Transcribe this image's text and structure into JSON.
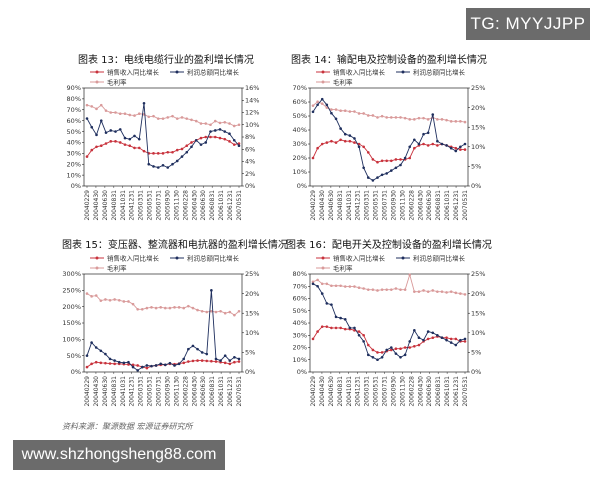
{
  "watermark_top": "TG: MYYJJPP",
  "watermark_bottom": "www.shzhongsheng88.com",
  "source_note": "资料来源：聚源数据 宏源证券研究所",
  "series_colors": {
    "sales_growth": "#c8323c",
    "profit_growth": "#1f2f5e",
    "gross_margin": "#d99a9a"
  },
  "chart_data": [
    {
      "type": "line",
      "title": "图表 13：电线电缆行业的盈利增长情况",
      "legend": [
        "销售收入同比增长",
        "利润总额同比增长",
        "毛利率"
      ],
      "x_tick_labels": [
        "20040229",
        "20040430",
        "20040630",
        "20040831",
        "20041031",
        "20041231",
        "20050331",
        "20050531",
        "20050731",
        "20050930",
        "20051130",
        "20060228",
        "20060430",
        "20060630",
        "20060831",
        "20061031",
        "20061231",
        "20070531"
      ],
      "left_axis": {
        "min": 0,
        "max": 90,
        "step": 10,
        "format": "percent"
      },
      "right_axis": {
        "min": 0,
        "max": 16,
        "step": 2,
        "format": "percent"
      },
      "series": [
        {
          "name": "销售收入同比增长",
          "axis": "left",
          "values": [
            27,
            33,
            36,
            37,
            39,
            41,
            41,
            40,
            38,
            37,
            35,
            35,
            32,
            30,
            30,
            30,
            30,
            31,
            31,
            33,
            34,
            37,
            40,
            42,
            44,
            45,
            45,
            45,
            44,
            43,
            41,
            38,
            39
          ]
        },
        {
          "name": "利润总额同比增长",
          "axis": "left",
          "values": [
            62,
            54,
            47,
            60,
            49,
            51,
            50,
            52,
            44,
            43,
            46,
            43,
            76,
            20,
            18,
            17,
            19,
            17,
            20,
            23,
            27,
            31,
            36,
            42,
            38,
            40,
            50,
            51,
            52,
            50,
            48,
            42,
            37
          ]
        },
        {
          "name": "毛利率",
          "axis": "right",
          "values": [
            13.2,
            13.0,
            12.6,
            13.2,
            12.3,
            12.0,
            12.0,
            11.8,
            11.8,
            11.6,
            11.5,
            11.8,
            11.7,
            11.3,
            11.4,
            11.0,
            11.0,
            11.2,
            11.4,
            11.0,
            11.2,
            11.0,
            10.8,
            10.6,
            10.2,
            10.2,
            10.0,
            10.6,
            10.3,
            10.4,
            10.2,
            9.8,
            10.0
          ]
        }
      ]
    },
    {
      "type": "line",
      "title": "图表 14：输配电及控制设备的盈利增长情况",
      "legend": [
        "销售收入同比增长",
        "利润总额同比增长",
        "毛利率"
      ],
      "x_tick_labels": [
        "20040229",
        "20040430",
        "20040630",
        "20040831",
        "20041031",
        "20041231",
        "20050331",
        "20050531",
        "20050731",
        "20050930",
        "20051130",
        "20060228",
        "20060430",
        "20060630",
        "20060831",
        "20061031",
        "20061231",
        "20070531"
      ],
      "left_axis": {
        "min": 0,
        "max": 70,
        "step": 10,
        "format": "percent"
      },
      "right_axis": {
        "min": 0,
        "max": 25,
        "step": 5,
        "format": "percent"
      },
      "series": [
        {
          "name": "销售收入同比增长",
          "axis": "left",
          "values": [
            20,
            27,
            30,
            31,
            32,
            31,
            33,
            32,
            32,
            31,
            30,
            28,
            24,
            19,
            17,
            18,
            18,
            18,
            19,
            19,
            19,
            20,
            27,
            29,
            30,
            29,
            30,
            29,
            30,
            29,
            28,
            27,
            26,
            26
          ]
        },
        {
          "name": "利润总额同比增长",
          "axis": "left",
          "values": [
            53,
            58,
            62,
            58,
            52,
            48,
            41,
            37,
            36,
            34,
            28,
            13,
            6,
            4,
            6,
            8,
            9,
            11,
            13,
            15,
            20,
            28,
            33,
            30,
            37,
            38,
            51,
            32,
            30,
            29,
            27,
            25,
            28,
            30
          ]
        },
        {
          "name": "毛利率",
          "axis": "right",
          "values": [
            20.5,
            21.5,
            21.0,
            20.0,
            19.5,
            19.5,
            19.2,
            19.2,
            19.0,
            19.0,
            18.5,
            18.5,
            18.0,
            18.0,
            17.5,
            17.8,
            17.5,
            17.5,
            17.5,
            17.5,
            17.3,
            17.0,
            17.0,
            17.3,
            17.3,
            17.0,
            17.5,
            17.0,
            17.0,
            16.8,
            16.5,
            16.5,
            16.5,
            16.3
          ]
        }
      ]
    },
    {
      "type": "line",
      "title": "图表 15：变压器、整流器和电抗器的盈利增长情况",
      "legend": [
        "销售收入同比增长",
        "利润总额同比增长",
        "毛利率"
      ],
      "x_tick_labels": [
        "20040229",
        "20040430",
        "20040630",
        "20040831",
        "20041031",
        "20041231",
        "20050331",
        "20050531",
        "20050731",
        "20050930",
        "20051130",
        "20060228",
        "20060430",
        "20060630",
        "20060831",
        "20061031",
        "20061231",
        "20070531"
      ],
      "left_axis": {
        "min": 0,
        "max": 300,
        "step": 50,
        "format": "percent"
      },
      "right_axis": {
        "min": 0,
        "max": 25,
        "step": 5,
        "format": "percent"
      },
      "series": [
        {
          "name": "销售收入同比增长",
          "axis": "left",
          "values": [
            15,
            25,
            30,
            28,
            27,
            26,
            25,
            25,
            24,
            23,
            22,
            20,
            15,
            12,
            18,
            20,
            22,
            22,
            25,
            24,
            26,
            28,
            32,
            34,
            35,
            35,
            34,
            33,
            32,
            30,
            28,
            25,
            30,
            32
          ]
        },
        {
          "name": "利润总额同比增长",
          "axis": "left",
          "values": [
            50,
            90,
            75,
            65,
            55,
            40,
            35,
            30,
            28,
            30,
            15,
            5,
            15,
            20,
            18,
            20,
            25,
            22,
            27,
            20,
            25,
            40,
            70,
            80,
            70,
            60,
            55,
            250,
            40,
            35,
            50,
            35,
            45,
            40
          ]
        },
        {
          "name": "毛利率",
          "axis": "right",
          "values": [
            20.0,
            19.3,
            19.5,
            18.2,
            18.5,
            18.3,
            18.5,
            18.3,
            18.0,
            18.0,
            17.3,
            16.0,
            16.0,
            16.3,
            16.5,
            16.3,
            16.5,
            16.3,
            16.3,
            16.5,
            16.5,
            16.3,
            16.8,
            16.3,
            15.8,
            15.5,
            15.3,
            15.5,
            15.3,
            15.5,
            15.0,
            15.3,
            14.5,
            15.5
          ]
        }
      ]
    },
    {
      "type": "line",
      "title": "图表 16：配电开关及控制设备的盈利增长情况",
      "legend": [
        "销售收入同比增长",
        "利润总额同比增长",
        "毛利率"
      ],
      "x_tick_labels": [
        "20040229",
        "20040430",
        "20040630",
        "20040831",
        "20041031",
        "20041231",
        "20050331",
        "20050531",
        "20050731",
        "20050930",
        "20051130",
        "20060228",
        "20060430",
        "20060630",
        "20060831",
        "20061031",
        "20061231",
        "20070531"
      ],
      "left_axis": {
        "min": 0,
        "max": 80,
        "step": 10,
        "format": "percent"
      },
      "right_axis": {
        "min": 0,
        "max": 25,
        "step": 5,
        "format": "percent"
      },
      "series": [
        {
          "name": "销售收入同比增长",
          "axis": "left",
          "values": [
            27,
            33,
            37,
            37,
            36,
            36,
            36,
            35,
            35,
            34,
            33,
            30,
            22,
            18,
            16,
            16,
            17,
            18,
            19,
            19,
            20,
            20,
            21,
            22,
            25,
            27,
            28,
            29,
            28,
            28,
            27,
            27,
            25,
            25
          ]
        },
        {
          "name": "利润总额同比增长",
          "axis": "left",
          "values": [
            72,
            70,
            64,
            56,
            55,
            45,
            44,
            43,
            36,
            36,
            30,
            25,
            14,
            12,
            10,
            12,
            18,
            20,
            15,
            12,
            14,
            25,
            34,
            28,
            26,
            33,
            32,
            30,
            28,
            26,
            24,
            22,
            26,
            27
          ]
        },
        {
          "name": "毛利率",
          "axis": "right",
          "values": [
            23.0,
            23.5,
            22.5,
            22.5,
            22.0,
            22.0,
            22.0,
            21.8,
            21.8,
            21.8,
            21.5,
            21.3,
            21.0,
            21.0,
            20.8,
            21.0,
            21.0,
            21.0,
            21.3,
            21.0,
            21.0,
            24.8,
            20.5,
            20.5,
            20.8,
            20.5,
            20.8,
            20.5,
            20.5,
            20.3,
            20.5,
            20.2,
            20.0,
            19.8
          ]
        }
      ]
    }
  ]
}
